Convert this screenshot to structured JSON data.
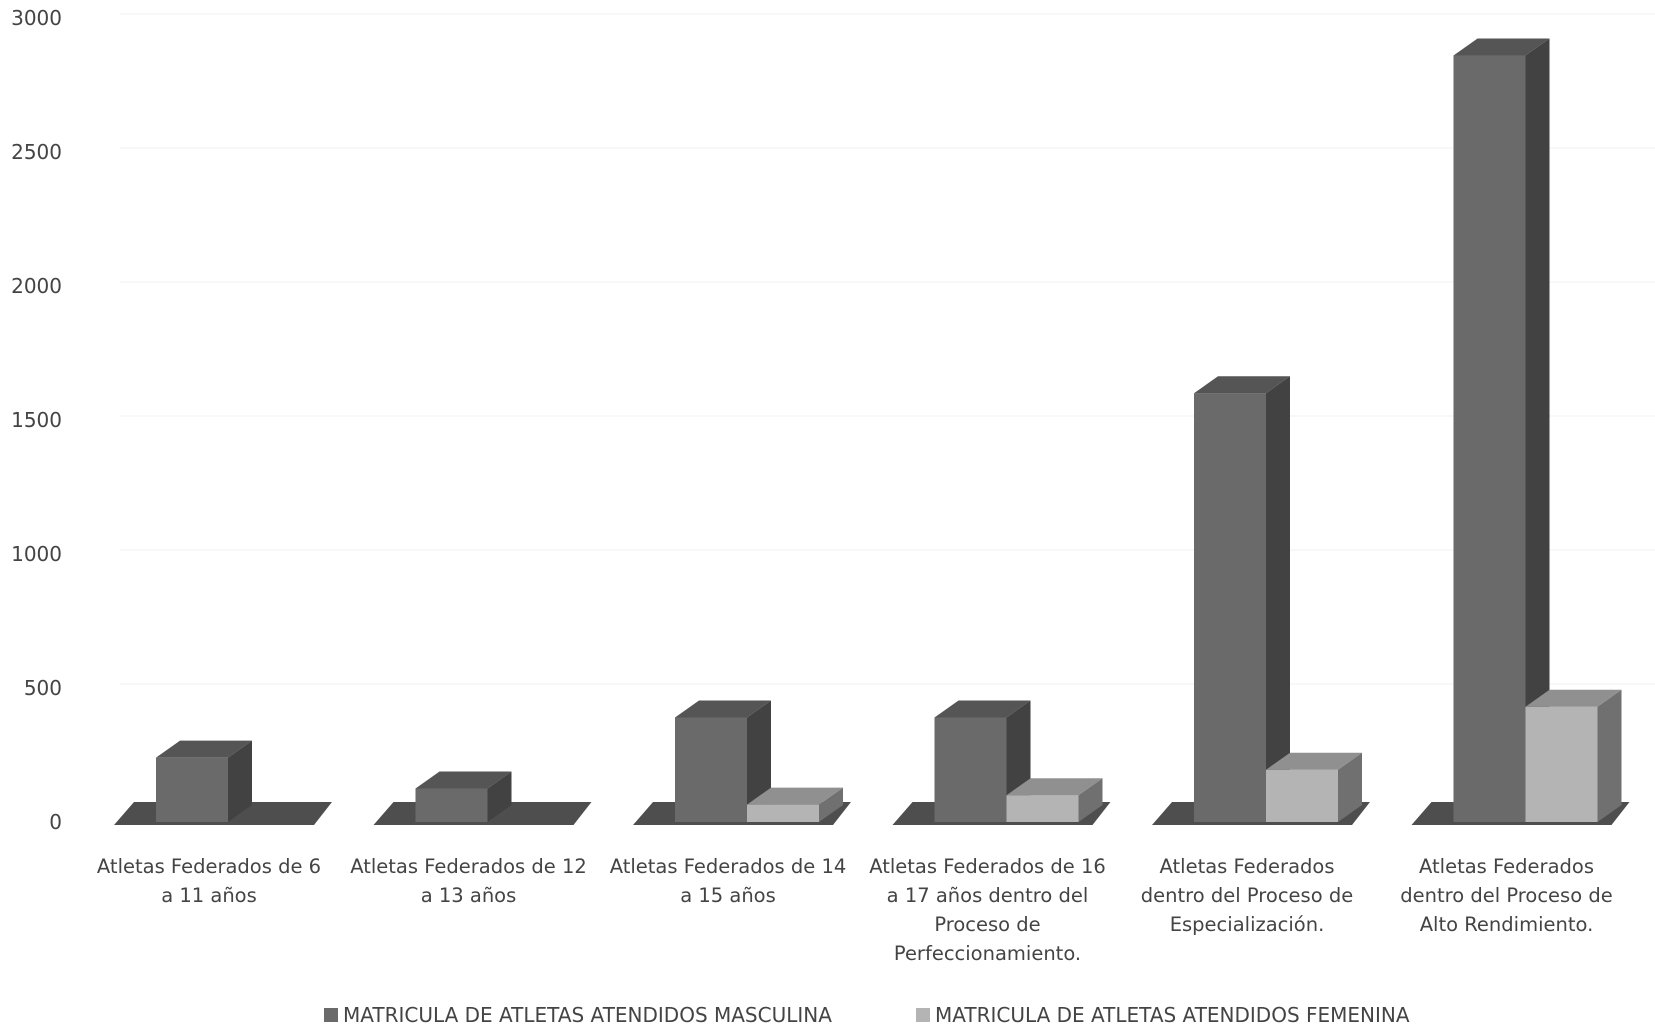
{
  "chart_data": {
    "type": "bar",
    "style": "3d-clustered-column",
    "title": "",
    "xlabel": "",
    "ylabel": "",
    "ylim": [
      0,
      3000
    ],
    "y_ticks": [
      "0",
      "500",
      "1000",
      "1500",
      "2000",
      "2500",
      "3000"
    ],
    "grid": true,
    "legend_position": "bottom",
    "categories": [
      [
        "Atletas Federados de 6",
        "a 11 años"
      ],
      [
        "Atletas Federados de 12",
        "a 13 años"
      ],
      [
        "Atletas Federados de 14",
        "a 15 años"
      ],
      [
        "Atletas Federados de 16",
        "a 17 años dentro del",
        "Proceso de",
        "Perfeccionamiento."
      ],
      [
        "Atletas Federados",
        "dentro del Proceso de",
        "Especialización."
      ],
      [
        "Atletas Federados",
        "dentro del Proceso de",
        "Alto Rendimiento."
      ]
    ],
    "series": [
      {
        "name": "MATRICULA DE ATLETAS ATENDIDOS  MASCULINA",
        "color": "#6a6a6a",
        "values": [
          240,
          125,
          390,
          390,
          1600,
          2860
        ]
      },
      {
        "name": "MATRICULA DE ATLETAS ATENDIDOS  FEMENINA",
        "color": "#b4b4b4",
        "values": [
          0,
          0,
          65,
          100,
          195,
          430
        ]
      }
    ]
  }
}
